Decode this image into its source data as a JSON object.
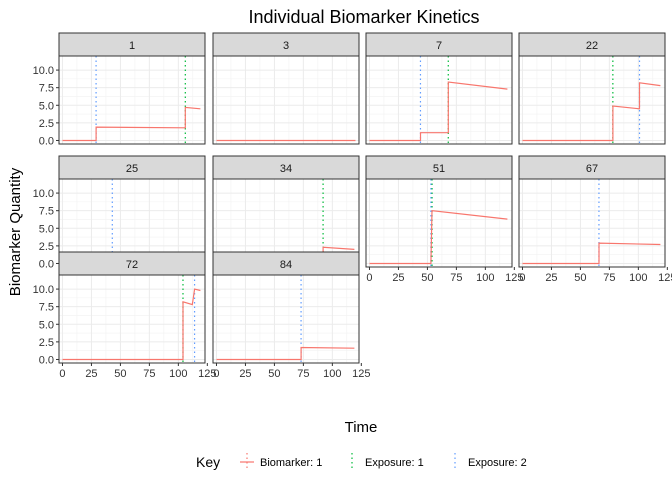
{
  "chart_data": {
    "type": "line",
    "title": "Individual Biomarker Kinetics",
    "xlabel": "Time",
    "ylabel": "Biomarker Quantity",
    "xlim": [
      -3,
      123
    ],
    "ylim": [
      -0.5,
      12
    ],
    "x_ticks": [
      0,
      25,
      50,
      75,
      100,
      125
    ],
    "y_ticks": [
      0.0,
      2.5,
      5.0,
      7.5,
      10.0
    ],
    "y_tick_labels": [
      "0.0",
      "2.5",
      "5.0",
      "7.5",
      "10.0"
    ],
    "grid": true,
    "legend": {
      "title": "Key",
      "position": "bottom",
      "entries": [
        {
          "label": "Biomarker: 1",
          "color": "#F8766D",
          "style": "solid"
        },
        {
          "label": "Exposure: 1",
          "color": "#00BA38",
          "style": "dotted"
        },
        {
          "label": "Exposure: 2",
          "color": "#619CFF",
          "style": "dotted"
        }
      ]
    },
    "panels": [
      {
        "id": "1",
        "exposure1": [
          106
        ],
        "exposure2": [
          29
        ],
        "biomarker": [
          [
            0,
            0
          ],
          [
            29,
            0
          ],
          [
            29,
            1.9
          ],
          [
            106,
            1.8
          ],
          [
            106,
            4.7
          ],
          [
            119,
            4.5
          ]
        ]
      },
      {
        "id": "3",
        "exposure1": [],
        "exposure2": [],
        "biomarker": [
          [
            0,
            0
          ],
          [
            120,
            0
          ]
        ]
      },
      {
        "id": "7",
        "exposure1": [
          68
        ],
        "exposure2": [
          44
        ],
        "biomarker": [
          [
            0,
            0
          ],
          [
            44,
            0
          ],
          [
            44,
            1.1
          ],
          [
            68,
            1.1
          ],
          [
            68,
            8.3
          ],
          [
            119,
            7.3
          ]
        ]
      },
      {
        "id": "22",
        "exposure1": [
          78
        ],
        "exposure2": [
          101
        ],
        "biomarker": [
          [
            0,
            0
          ],
          [
            78,
            0
          ],
          [
            78,
            4.9
          ],
          [
            101,
            4.5
          ],
          [
            101,
            8.2
          ],
          [
            119,
            7.8
          ]
        ]
      },
      {
        "id": "25",
        "exposure1": [],
        "exposure2": [
          43
        ],
        "biomarker": [
          [
            0,
            0
          ],
          [
            43,
            0
          ],
          [
            43,
            0.9
          ],
          [
            119,
            0.8
          ]
        ]
      },
      {
        "id": "34",
        "exposure1": [
          92
        ],
        "exposure2": [],
        "biomarker": [
          [
            0,
            0
          ],
          [
            92,
            0
          ],
          [
            92,
            2.3
          ],
          [
            119,
            2.0
          ]
        ]
      },
      {
        "id": "51",
        "exposure1": [
          54
        ],
        "exposure2": [
          53
        ],
        "biomarker": [
          [
            0,
            0
          ],
          [
            53,
            0
          ],
          [
            54,
            7.5
          ],
          [
            119,
            6.3
          ]
        ]
      },
      {
        "id": "67",
        "exposure1": [],
        "exposure2": [
          66
        ],
        "biomarker": [
          [
            0,
            0
          ],
          [
            66,
            0
          ],
          [
            66,
            2.9
          ],
          [
            119,
            2.7
          ]
        ]
      },
      {
        "id": "72",
        "exposure1": [
          104
        ],
        "exposure2": [
          114
        ],
        "biomarker": [
          [
            0,
            0
          ],
          [
            104,
            0
          ],
          [
            104,
            8.2
          ],
          [
            112,
            7.8
          ],
          [
            114,
            10.0
          ],
          [
            119,
            9.8
          ]
        ]
      },
      {
        "id": "84",
        "exposure1": [],
        "exposure2": [
          73
        ],
        "biomarker": [
          [
            0,
            0
          ],
          [
            73,
            0
          ],
          [
            73,
            1.7
          ],
          [
            119,
            1.6
          ]
        ]
      }
    ]
  }
}
